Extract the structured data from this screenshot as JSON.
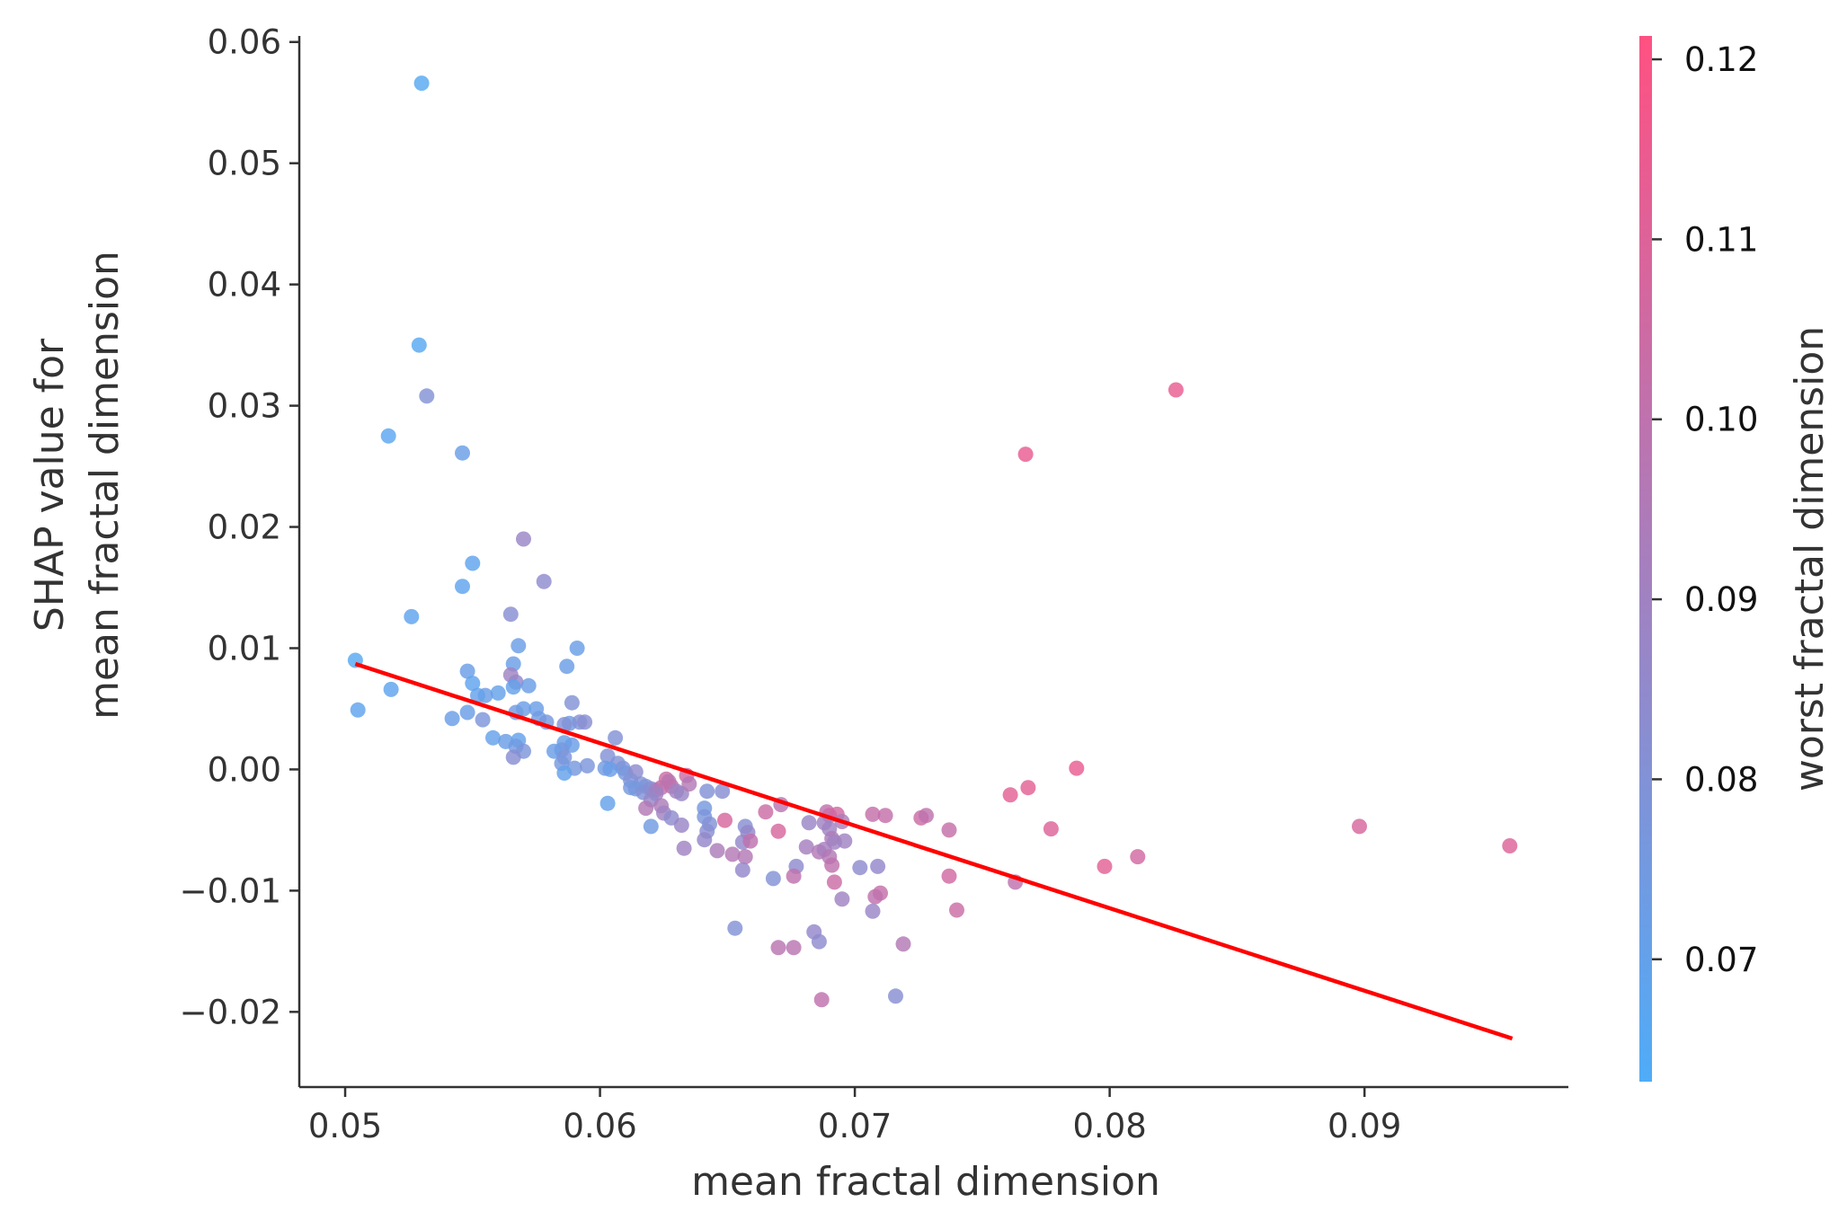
{
  "chart_data": {
    "type": "scatter",
    "title": "",
    "xlabel": "mean fractal dimension",
    "ylabel_lines": [
      "SHAP value for",
      "mean fractal dimension"
    ],
    "xlim": [
      0.0482,
      0.098
    ],
    "ylim": [
      -0.0262,
      0.0605
    ],
    "x_ticks": [
      0.05,
      0.06,
      0.07,
      0.08,
      0.09
    ],
    "x_tick_labels": [
      "0.05",
      "0.06",
      "0.07",
      "0.08",
      "0.09"
    ],
    "y_ticks": [
      0.06,
      0.05,
      0.04,
      0.03,
      0.02,
      0.01,
      0.0,
      -0.01,
      -0.02
    ],
    "y_tick_labels": [
      "0.06",
      "0.05",
      "0.04",
      "0.03",
      "0.02",
      "0.01",
      "0.00",
      "−0.01",
      "−0.02"
    ],
    "grid": false,
    "colorbar": {
      "label": "worst fractal dimension",
      "range": [
        0.0632,
        0.1213
      ],
      "ticks": [
        0.07,
        0.08,
        0.09,
        0.1,
        0.11,
        0.12
      ],
      "tick_labels": [
        "0.07",
        "0.08",
        "0.09",
        "0.10",
        "0.11",
        "0.12"
      ],
      "color_low": "#4facf8",
      "color_high": "#ff5182"
    },
    "trend_line": {
      "x": [
        0.0504,
        0.0958
      ],
      "y": [
        0.0087,
        -0.0222
      ],
      "color": "#ff0000"
    },
    "points": [
      [
        0.053,
        0.0566,
        0.066
      ],
      [
        0.0529,
        0.035,
        0.066
      ],
      [
        0.0532,
        0.0308,
        0.08
      ],
      [
        0.0517,
        0.0275,
        0.067
      ],
      [
        0.0546,
        0.0261,
        0.072
      ],
      [
        0.057,
        0.019,
        0.088
      ],
      [
        0.0578,
        0.0155,
        0.084
      ],
      [
        0.055,
        0.017,
        0.068
      ],
      [
        0.0546,
        0.0151,
        0.068
      ],
      [
        0.0565,
        0.0128,
        0.082
      ],
      [
        0.0526,
        0.0126,
        0.068
      ],
      [
        0.0504,
        0.009,
        0.066
      ],
      [
        0.0591,
        0.01,
        0.072
      ],
      [
        0.0568,
        0.0102,
        0.072
      ],
      [
        0.0587,
        0.0085,
        0.072
      ],
      [
        0.0566,
        0.0087,
        0.072
      ],
      [
        0.0548,
        0.0081,
        0.072
      ],
      [
        0.0565,
        0.0078,
        0.09
      ],
      [
        0.0567,
        0.0072,
        0.086
      ],
      [
        0.055,
        0.0071,
        0.068
      ],
      [
        0.0566,
        0.0068,
        0.07
      ],
      [
        0.0572,
        0.0069,
        0.072
      ],
      [
        0.0518,
        0.0066,
        0.068
      ],
      [
        0.056,
        0.0063,
        0.07
      ],
      [
        0.0555,
        0.0061,
        0.072
      ],
      [
        0.0552,
        0.0061,
        0.07
      ],
      [
        0.0589,
        0.0055,
        0.08
      ],
      [
        0.057,
        0.005,
        0.072
      ],
      [
        0.0575,
        0.005,
        0.072
      ],
      [
        0.0505,
        0.0049,
        0.068
      ],
      [
        0.0548,
        0.0047,
        0.072
      ],
      [
        0.0567,
        0.0047,
        0.074
      ],
      [
        0.0576,
        0.0042,
        0.074
      ],
      [
        0.0554,
        0.0041,
        0.078
      ],
      [
        0.0542,
        0.0042,
        0.072
      ],
      [
        0.0579,
        0.0039,
        0.076
      ],
      [
        0.0588,
        0.0038,
        0.074
      ],
      [
        0.0592,
        0.0039,
        0.08
      ],
      [
        0.0586,
        0.0037,
        0.08
      ],
      [
        0.0594,
        0.0039,
        0.082
      ],
      [
        0.0558,
        0.0026,
        0.07
      ],
      [
        0.0606,
        0.0026,
        0.08
      ],
      [
        0.0563,
        0.0023,
        0.072
      ],
      [
        0.0568,
        0.0024,
        0.07
      ],
      [
        0.0567,
        0.0019,
        0.074
      ],
      [
        0.0586,
        0.0022,
        0.072
      ],
      [
        0.0589,
        0.002,
        0.072
      ],
      [
        0.0585,
        0.0016,
        0.076
      ],
      [
        0.057,
        0.0015,
        0.078
      ],
      [
        0.0582,
        0.0015,
        0.072
      ],
      [
        0.0566,
        0.001,
        0.082
      ],
      [
        0.0603,
        0.0011,
        0.08
      ],
      [
        0.0586,
        0.001,
        0.078
      ],
      [
        0.0585,
        0.0005,
        0.076
      ],
      [
        0.0607,
        0.0005,
        0.08
      ],
      [
        0.059,
        0.0001,
        0.076
      ],
      [
        0.0595,
        0.0003,
        0.078
      ],
      [
        0.0602,
        0.0001,
        0.074
      ],
      [
        0.0609,
        0.0001,
        0.078
      ],
      [
        0.0604,
        0.0,
        0.072
      ],
      [
        0.0586,
        -0.0003,
        0.07
      ],
      [
        0.061,
        -0.0003,
        0.076
      ],
      [
        0.0614,
        -0.0002,
        0.084
      ],
      [
        0.0612,
        -0.0009,
        0.08
      ],
      [
        0.0616,
        -0.0012,
        0.08
      ],
      [
        0.0618,
        -0.0014,
        0.078
      ],
      [
        0.0612,
        -0.0015,
        0.076
      ],
      [
        0.0614,
        -0.0016,
        0.076
      ],
      [
        0.0617,
        -0.0019,
        0.08
      ],
      [
        0.062,
        -0.0016,
        0.082
      ],
      [
        0.0622,
        -0.0017,
        0.088
      ],
      [
        0.0624,
        -0.0015,
        0.1
      ],
      [
        0.0626,
        -0.0008,
        0.104
      ],
      [
        0.0627,
        -0.001,
        0.098
      ],
      [
        0.0628,
        -0.0014,
        0.1
      ],
      [
        0.063,
        -0.0018,
        0.09
      ],
      [
        0.0632,
        -0.002,
        0.088
      ],
      [
        0.0634,
        -0.0005,
        0.104
      ],
      [
        0.0635,
        -0.0012,
        0.096
      ],
      [
        0.0622,
        -0.002,
        0.09
      ],
      [
        0.062,
        -0.0025,
        0.086
      ],
      [
        0.0624,
        -0.003,
        0.094
      ],
      [
        0.0603,
        -0.0028,
        0.07
      ],
      [
        0.0618,
        -0.0032,
        0.096
      ],
      [
        0.0625,
        -0.0036,
        0.09
      ],
      [
        0.0628,
        -0.004,
        0.084
      ],
      [
        0.062,
        -0.0047,
        0.074
      ],
      [
        0.0632,
        -0.0046,
        0.088
      ],
      [
        0.0641,
        -0.0032,
        0.076
      ],
      [
        0.0641,
        -0.0039,
        0.078
      ],
      [
        0.0643,
        -0.0045,
        0.08
      ],
      [
        0.0642,
        -0.0051,
        0.082
      ],
      [
        0.0641,
        -0.0058,
        0.086
      ],
      [
        0.0642,
        -0.0018,
        0.08
      ],
      [
        0.0648,
        -0.0018,
        0.082
      ],
      [
        0.0649,
        -0.0042,
        0.108
      ],
      [
        0.0646,
        -0.0067,
        0.094
      ],
      [
        0.0652,
        -0.007,
        0.096
      ],
      [
        0.0657,
        -0.0047,
        0.082
      ],
      [
        0.0658,
        -0.0052,
        0.086
      ],
      [
        0.0656,
        -0.006,
        0.086
      ],
      [
        0.0659,
        -0.0059,
        0.1
      ],
      [
        0.0657,
        -0.0072,
        0.096
      ],
      [
        0.0656,
        -0.0083,
        0.086
      ],
      [
        0.0633,
        -0.0065,
        0.09
      ],
      [
        0.0665,
        -0.0035,
        0.104
      ],
      [
        0.0671,
        -0.0029,
        0.098
      ],
      [
        0.067,
        -0.0051,
        0.108
      ],
      [
        0.0682,
        -0.0044,
        0.088
      ],
      [
        0.0681,
        -0.0064,
        0.092
      ],
      [
        0.0686,
        -0.0068,
        0.096
      ],
      [
        0.0689,
        -0.0035,
        0.1
      ],
      [
        0.069,
        -0.0038,
        0.104
      ],
      [
        0.0693,
        -0.0037,
        0.106
      ],
      [
        0.0688,
        -0.0044,
        0.09
      ],
      [
        0.069,
        -0.0049,
        0.09
      ],
      [
        0.0691,
        -0.0057,
        0.094
      ],
      [
        0.0692,
        -0.006,
        0.09
      ],
      [
        0.0695,
        -0.0043,
        0.094
      ],
      [
        0.0696,
        -0.0059,
        0.09
      ],
      [
        0.0688,
        -0.0066,
        0.092
      ],
      [
        0.069,
        -0.0072,
        0.096
      ],
      [
        0.0691,
        -0.0079,
        0.1
      ],
      [
        0.0692,
        -0.0093,
        0.104
      ],
      [
        0.0668,
        -0.009,
        0.08
      ],
      [
        0.0677,
        -0.008,
        0.084
      ],
      [
        0.0676,
        -0.0088,
        0.1
      ],
      [
        0.0702,
        -0.0081,
        0.084
      ],
      [
        0.0707,
        -0.0037,
        0.102
      ],
      [
        0.0712,
        -0.0038,
        0.102
      ],
      [
        0.0709,
        -0.008,
        0.086
      ],
      [
        0.071,
        -0.0102,
        0.102
      ],
      [
        0.0708,
        -0.0105,
        0.1
      ],
      [
        0.0695,
        -0.0107,
        0.09
      ],
      [
        0.0707,
        -0.0117,
        0.088
      ],
      [
        0.0726,
        -0.004,
        0.104
      ],
      [
        0.0728,
        -0.0038,
        0.1
      ],
      [
        0.0737,
        -0.005,
        0.102
      ],
      [
        0.0737,
        -0.0088,
        0.106
      ],
      [
        0.074,
        -0.0116,
        0.104
      ],
      [
        0.0719,
        -0.0144,
        0.096
      ],
      [
        0.0716,
        -0.0187,
        0.082
      ],
      [
        0.0653,
        -0.0131,
        0.08
      ],
      [
        0.067,
        -0.0147,
        0.098
      ],
      [
        0.0676,
        -0.0147,
        0.098
      ],
      [
        0.0684,
        -0.0134,
        0.086
      ],
      [
        0.0686,
        -0.0142,
        0.084
      ],
      [
        0.0687,
        -0.019,
        0.1
      ],
      [
        0.0761,
        -0.0021,
        0.112
      ],
      [
        0.0768,
        -0.0015,
        0.112
      ],
      [
        0.0763,
        -0.0093,
        0.1
      ],
      [
        0.0767,
        0.026,
        0.114
      ],
      [
        0.0787,
        0.0001,
        0.114
      ],
      [
        0.0777,
        -0.0049,
        0.11
      ],
      [
        0.0798,
        -0.008,
        0.112
      ],
      [
        0.0811,
        -0.0072,
        0.106
      ],
      [
        0.0826,
        0.0313,
        0.114
      ],
      [
        0.0898,
        -0.0047,
        0.108
      ],
      [
        0.0957,
        -0.0063,
        0.11
      ]
    ]
  }
}
